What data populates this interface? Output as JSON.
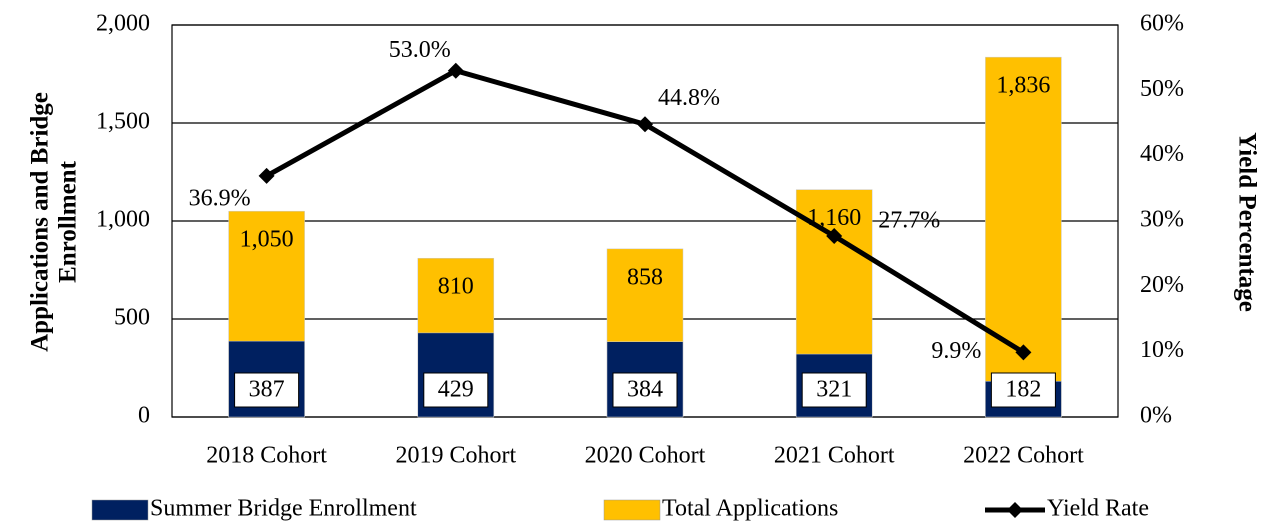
{
  "chart_data": {
    "type": "bar",
    "categories": [
      "2018 Cohort",
      "2019 Cohort",
      "2020 Cohort",
      "2021 Cohort",
      "2022 Cohort"
    ],
    "series": [
      {
        "name": "Summer Bridge Enrollment",
        "color": "#002060",
        "values": [
          387,
          429,
          384,
          321,
          182
        ]
      },
      {
        "name": "Total Applications",
        "color": "#ffc000",
        "values": [
          1050,
          810,
          858,
          1160,
          1836
        ],
        "value_labels": [
          "1,050",
          "810",
          "858",
          "1,160",
          "1,836"
        ]
      },
      {
        "name": "Yield Rate",
        "type": "line",
        "axis": "y2",
        "color": "#000000",
        "values": [
          36.9,
          53.0,
          44.8,
          27.7,
          9.9
        ],
        "value_labels": [
          "36.9%",
          "53.0%",
          "44.8%",
          "27.7%",
          "9.9%"
        ]
      }
    ],
    "y_label": [
      "Applications and Bridge",
      "Enrollment"
    ],
    "y2_label": "Yield Percentage",
    "ylim": [
      0,
      2000
    ],
    "yticks": [
      0,
      500,
      {
        "value": 1000,
        "label": "1,000"
      },
      {
        "value": 1500,
        "label": "1,500"
      },
      {
        "value": 2000,
        "label": "2,000"
      }
    ],
    "y2lim": [
      0,
      60
    ],
    "y2ticks": [
      {
        "value": 0,
        "label": "0%"
      },
      {
        "value": 10,
        "label": "10%"
      },
      {
        "value": 20,
        "label": "20%"
      },
      {
        "value": 30,
        "label": "30%"
      },
      {
        "value": 40,
        "label": "40%"
      },
      {
        "value": 50,
        "label": "50%"
      },
      {
        "value": 60,
        "label": "60%"
      }
    ],
    "grid": true,
    "legend": "bottom"
  }
}
